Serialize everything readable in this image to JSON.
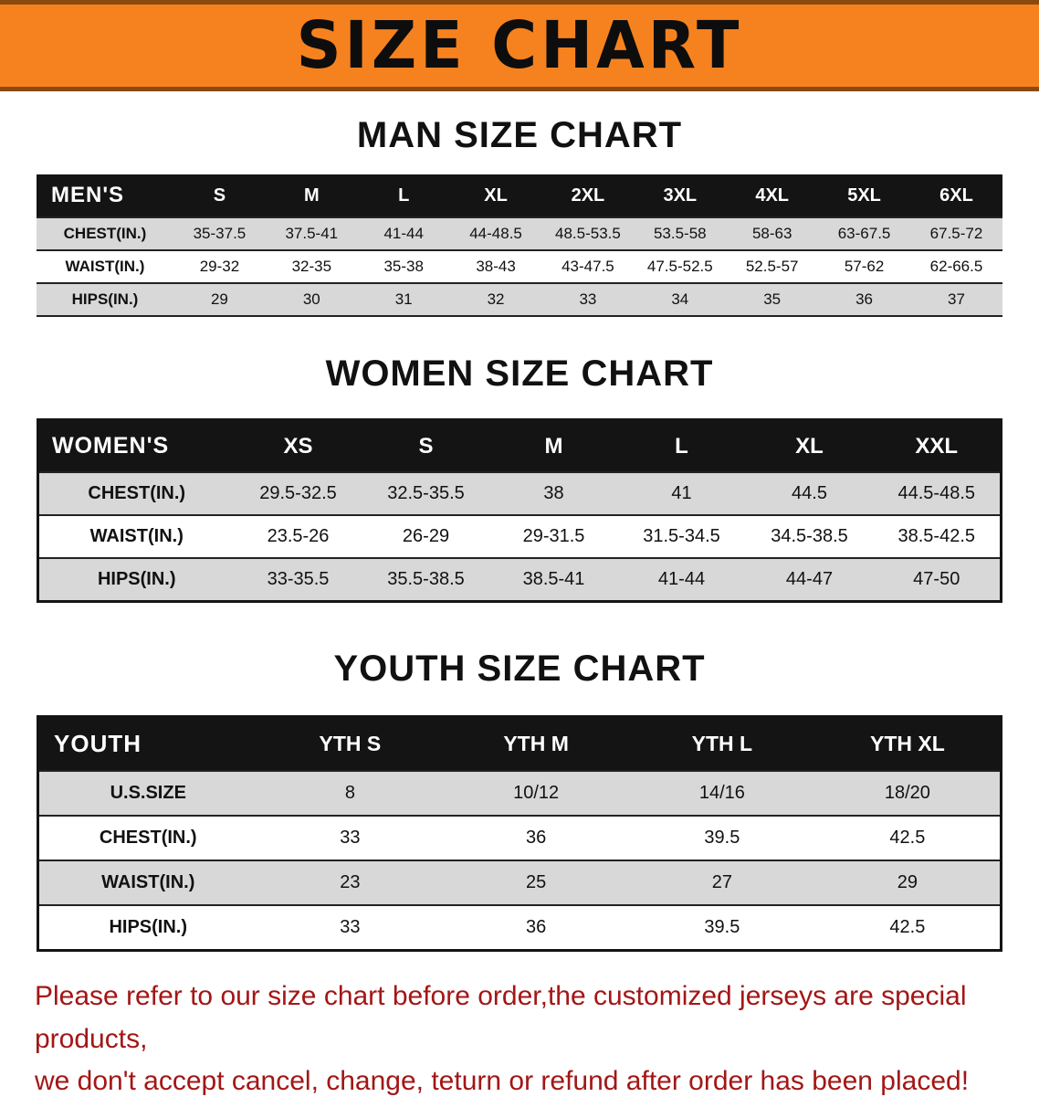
{
  "banner": {
    "title": "SIZE CHART"
  },
  "sections": [
    {
      "heading": "MAN SIZE CHART",
      "table": {
        "corner": "MEN'S",
        "columns": [
          "S",
          "M",
          "L",
          "XL",
          "2XL",
          "3XL",
          "4XL",
          "5XL",
          "6XL"
        ],
        "rows": [
          {
            "label": "CHEST(IN.)",
            "values": [
              "35-37.5",
              "37.5-41",
              "41-44",
              "44-48.5",
              "48.5-53.5",
              "53.5-58",
              "58-63",
              "63-67.5",
              "67.5-72"
            ]
          },
          {
            "label": "WAIST(IN.)",
            "values": [
              "29-32",
              "32-35",
              "35-38",
              "38-43",
              "43-47.5",
              "47.5-52.5",
              "52.5-57",
              "57-62",
              "62-66.5"
            ]
          },
          {
            "label": "HIPS(IN.)",
            "values": [
              "29",
              "30",
              "31",
              "32",
              "33",
              "34",
              "35",
              "36",
              "37"
            ]
          }
        ]
      }
    },
    {
      "heading": "WOMEN SIZE CHART",
      "table": {
        "corner": "WOMEN'S",
        "columns": [
          "XS",
          "S",
          "M",
          "L",
          "XL",
          "XXL"
        ],
        "rows": [
          {
            "label": "CHEST(IN.)",
            "values": [
              "29.5-32.5",
              "32.5-35.5",
              "38",
              "41",
              "44.5",
              "44.5-48.5"
            ]
          },
          {
            "label": "WAIST(IN.)",
            "values": [
              "23.5-26",
              "26-29",
              "29-31.5",
              "31.5-34.5",
              "34.5-38.5",
              "38.5-42.5"
            ]
          },
          {
            "label": "HIPS(IN.)",
            "values": [
              "33-35.5",
              "35.5-38.5",
              "38.5-41",
              "41-44",
              "44-47",
              "47-50"
            ]
          }
        ]
      }
    },
    {
      "heading": "YOUTH SIZE CHART",
      "table": {
        "corner": "YOUTH",
        "columns": [
          "YTH S",
          "YTH M",
          "YTH L",
          "YTH XL"
        ],
        "rows": [
          {
            "label": "U.S.SIZE",
            "values": [
              "8",
              "10/12",
              "14/16",
              "18/20"
            ]
          },
          {
            "label": "CHEST(IN.)",
            "values": [
              "33",
              "36",
              "39.5",
              "42.5"
            ]
          },
          {
            "label": "WAIST(IN.)",
            "values": [
              "23",
              "25",
              "27",
              "29"
            ]
          },
          {
            "label": "HIPS(IN.)",
            "values": [
              "33",
              "36",
              "39.5",
              "42.5"
            ]
          }
        ]
      }
    }
  ],
  "footer": {
    "lines": [
      "Please refer to our size chart before order,the customized jerseys are special products,",
      "we don't accept cancel, change, teturn or refund after order has been placed!"
    ]
  },
  "colors": {
    "banner_bg": "#F6821F",
    "banner_edge": "#8a4a0e",
    "header_bg": "#141414",
    "stripe": "#D8D8D8",
    "line": "#222222",
    "footer_text": "#A31616"
  }
}
